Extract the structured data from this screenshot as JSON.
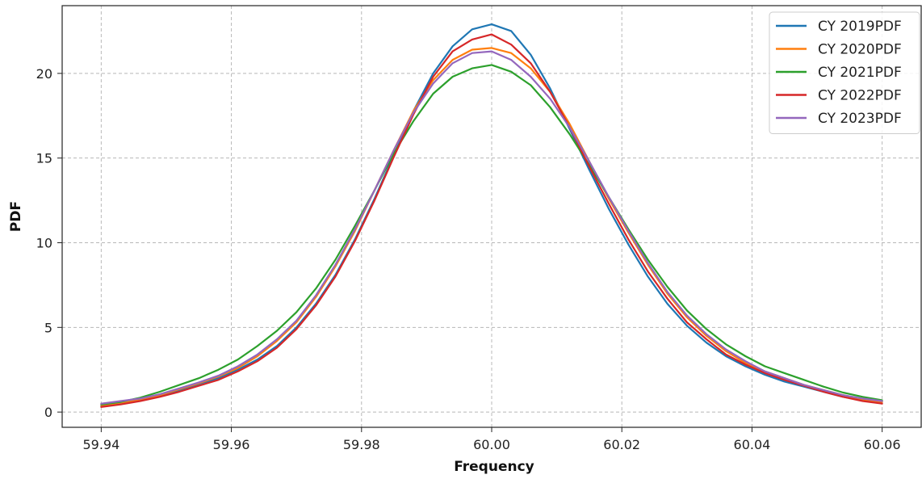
{
  "chart_data": {
    "type": "line",
    "title": "",
    "xlabel": "Frequency",
    "ylabel": "PDF",
    "xlim": [
      59.934,
      60.066
    ],
    "ylim": [
      -0.9,
      24.0
    ],
    "xticks": [
      59.94,
      59.96,
      59.98,
      60.0,
      60.02,
      60.04,
      60.06
    ],
    "xtick_labels": [
      "59.94",
      "59.96",
      "59.98",
      "60.00",
      "60.02",
      "60.04",
      "60.06"
    ],
    "yticks": [
      0,
      5,
      10,
      15,
      20
    ],
    "ytick_labels": [
      "0",
      "5",
      "10",
      "15",
      "20"
    ],
    "grid": true,
    "legend_position": "top-right",
    "x": [
      59.94,
      59.943,
      59.946,
      59.949,
      59.952,
      59.955,
      59.958,
      59.961,
      59.964,
      59.967,
      59.97,
      59.973,
      59.976,
      59.979,
      59.982,
      59.985,
      59.988,
      59.991,
      59.994,
      59.997,
      60.0,
      60.003,
      60.006,
      60.009,
      60.012,
      60.015,
      60.018,
      60.021,
      60.024,
      60.027,
      60.03,
      60.033,
      60.036,
      60.039,
      60.042,
      60.045,
      60.048,
      60.051,
      60.054,
      60.057,
      60.06
    ],
    "series": [
      {
        "name": "CY 2019PDF",
        "color": "#1f77b4",
        "values": [
          0.35,
          0.5,
          0.7,
          0.95,
          1.3,
          1.65,
          2.0,
          2.5,
          3.1,
          3.9,
          5.0,
          6.4,
          8.1,
          10.2,
          12.6,
          15.2,
          17.8,
          20.0,
          21.6,
          22.6,
          22.9,
          22.5,
          21.1,
          19.1,
          16.7,
          14.3,
          12.0,
          9.9,
          8.0,
          6.4,
          5.1,
          4.1,
          3.3,
          2.7,
          2.2,
          1.8,
          1.5,
          1.2,
          0.9,
          0.7,
          0.6
        ]
      },
      {
        "name": "CY 2020PDF",
        "color": "#ff7f0e",
        "values": [
          0.4,
          0.55,
          0.75,
          1.0,
          1.35,
          1.7,
          2.1,
          2.6,
          3.3,
          4.2,
          5.3,
          6.8,
          8.6,
          10.7,
          13.1,
          15.5,
          17.8,
          19.6,
          20.8,
          21.4,
          21.5,
          21.2,
          20.3,
          18.9,
          17.0,
          14.8,
          12.6,
          10.6,
          8.7,
          7.0,
          5.6,
          4.5,
          3.6,
          2.9,
          2.4,
          2.0,
          1.6,
          1.3,
          1.0,
          0.75,
          0.6
        ]
      },
      {
        "name": "CY 2021PDF",
        "color": "#2ca02c",
        "values": [
          0.45,
          0.6,
          0.85,
          1.2,
          1.6,
          2.0,
          2.5,
          3.1,
          3.9,
          4.8,
          5.9,
          7.3,
          9.0,
          11.0,
          13.1,
          15.3,
          17.2,
          18.8,
          19.8,
          20.3,
          20.5,
          20.1,
          19.3,
          18.0,
          16.4,
          14.6,
          12.7,
          10.8,
          9.0,
          7.4,
          6.0,
          4.9,
          4.0,
          3.3,
          2.7,
          2.3,
          1.9,
          1.5,
          1.15,
          0.9,
          0.7
        ]
      },
      {
        "name": "CY 2022PDF",
        "color": "#d62728",
        "values": [
          0.3,
          0.45,
          0.65,
          0.9,
          1.2,
          1.55,
          1.9,
          2.4,
          3.0,
          3.8,
          4.9,
          6.3,
          8.0,
          10.1,
          12.5,
          15.1,
          17.6,
          19.8,
          21.3,
          22.0,
          22.3,
          21.7,
          20.6,
          18.9,
          16.8,
          14.5,
          12.3,
          10.2,
          8.3,
          6.7,
          5.3,
          4.3,
          3.4,
          2.8,
          2.3,
          1.9,
          1.55,
          1.2,
          0.9,
          0.65,
          0.5
        ]
      },
      {
        "name": "CY 2023PDF",
        "color": "#9467bd",
        "values": [
          0.5,
          0.65,
          0.8,
          1.05,
          1.4,
          1.75,
          2.15,
          2.7,
          3.4,
          4.3,
          5.4,
          6.9,
          8.7,
          10.8,
          13.1,
          15.5,
          17.7,
          19.4,
          20.6,
          21.2,
          21.3,
          20.8,
          19.8,
          18.5,
          16.8,
          14.8,
          12.7,
          10.7,
          8.8,
          7.1,
          5.7,
          4.6,
          3.7,
          3.0,
          2.4,
          2.0,
          1.6,
          1.3,
          1.0,
          0.8,
          0.65
        ]
      }
    ]
  }
}
